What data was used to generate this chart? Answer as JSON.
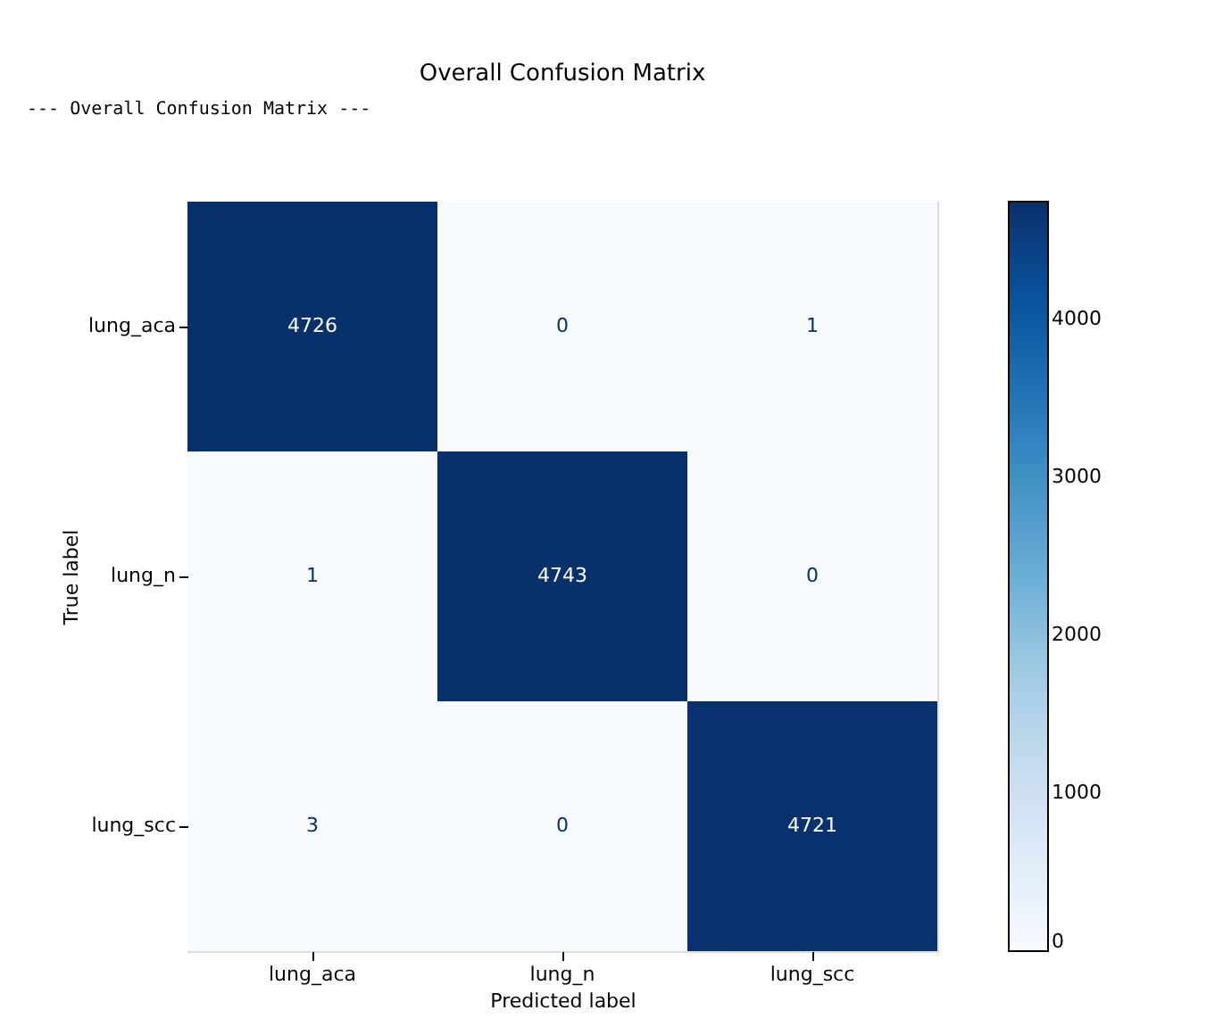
{
  "chart_data": {
    "type": "heatmap",
    "title": "Overall Confusion Matrix",
    "xlabel": "Predicted label",
    "ylabel": "True label",
    "annotations": [
      "--- Overall Confusion Matrix ---"
    ],
    "categories": [
      "lung_aca",
      "lung_n",
      "lung_scc"
    ],
    "y_categories": [
      "lung_aca",
      "lung_n",
      "lung_scc"
    ],
    "cells": [
      [
        4726,
        0,
        1
      ],
      [
        1,
        4743,
        0
      ],
      [
        3,
        0,
        4721
      ]
    ],
    "clim": [
      0,
      4743
    ],
    "cticks": [
      0,
      1000,
      2000,
      3000,
      4000
    ],
    "data_labels": true,
    "grid": false
  }
}
